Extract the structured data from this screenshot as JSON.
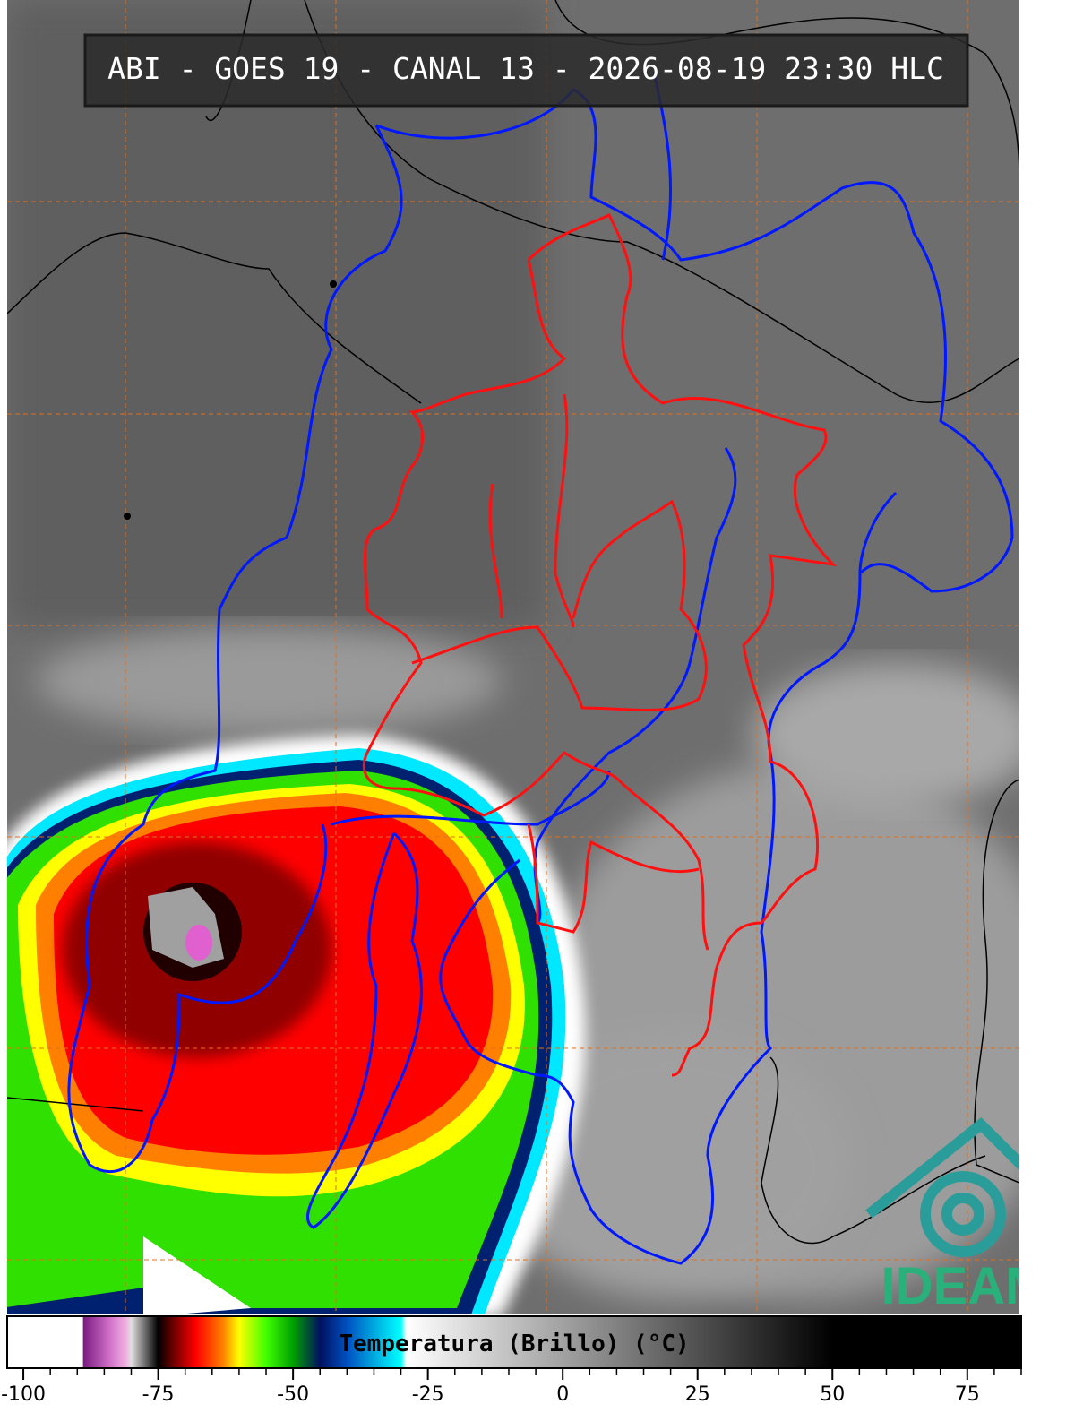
{
  "header": {
    "title": "ABI - GOES 19 - CANAL 13 - 2026-08-19 23:30 HLC"
  },
  "logo": {
    "text": "IDEAM"
  },
  "colorbar": {
    "label": "Temperatura (Brillo) (°C)",
    "lim": [
      -103,
      85
    ],
    "ticks": [
      -100,
      -75,
      -50,
      -25,
      0,
      25,
      50,
      75
    ],
    "minor_tick_step": 5,
    "stops": [
      {
        "value": -103,
        "color": "#ffffff"
      },
      {
        "value": -89,
        "color": "#ffffff"
      },
      {
        "value": -88.9,
        "color": "#7a1a80"
      },
      {
        "value": -84,
        "color": "#d070c8"
      },
      {
        "value": -81,
        "color": "#f0b0e0"
      },
      {
        "value": -80,
        "color": "#e0e0e0"
      },
      {
        "value": -75,
        "color": "#000000"
      },
      {
        "value": -73,
        "color": "#500000"
      },
      {
        "value": -68,
        "color": "#ff0000"
      },
      {
        "value": -63,
        "color": "#ff8000"
      },
      {
        "value": -60,
        "color": "#ffff00"
      },
      {
        "value": -55,
        "color": "#40ff00"
      },
      {
        "value": -50,
        "color": "#00a000"
      },
      {
        "value": -45,
        "color": "#001060"
      },
      {
        "value": -40,
        "color": "#0050c0"
      },
      {
        "value": -30,
        "color": "#00ffff"
      },
      {
        "value": -29,
        "color": "#ffffff"
      },
      {
        "value": 50,
        "color": "#000000"
      },
      {
        "value": 85,
        "color": "#000000"
      }
    ]
  }
}
